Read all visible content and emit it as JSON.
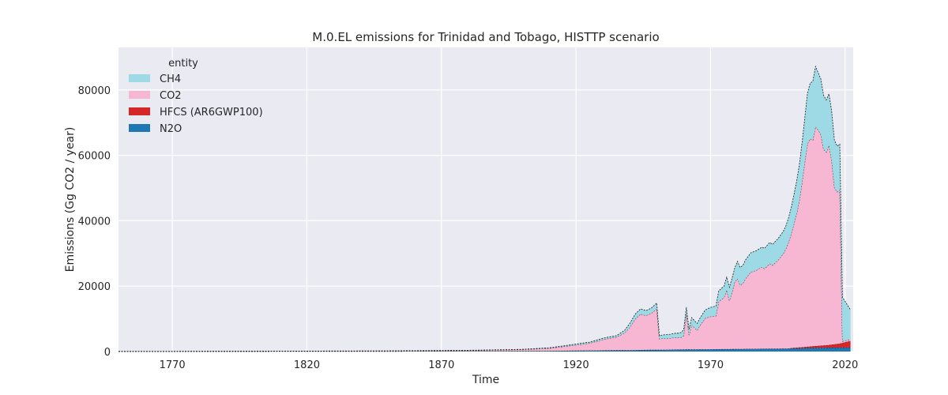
{
  "chart_data": {
    "type": "area",
    "title": "M.0.EL emissions for Trinidad and Tobago, HISTTP scenario",
    "xlabel": "Time",
    "ylabel": "Emissions (Gg CO2 / year)",
    "xlim": [
      1750,
      2023
    ],
    "ylim": [
      0,
      93000
    ],
    "xticks": [
      1770,
      1820,
      1870,
      1920,
      1970,
      2020
    ],
    "yticks": [
      0,
      20000,
      40000,
      60000,
      80000
    ],
    "grid": true,
    "stacked": true,
    "legend": {
      "title": "entity",
      "placement": "top-left"
    },
    "x": [
      1750,
      1800,
      1850,
      1880,
      1900,
      1910,
      1915,
      1920,
      1925,
      1928,
      1930,
      1932,
      1935,
      1938,
      1940,
      1942,
      1944,
      1946,
      1948,
      1950,
      1951,
      1952,
      1955,
      1957,
      1958,
      1959,
      1960,
      1961,
      1962,
      1963,
      1965,
      1966,
      1968,
      1970,
      1972,
      1973,
      1975,
      1976,
      1977,
      1978,
      1979,
      1980,
      1981,
      1982,
      1983,
      1985,
      1987,
      1989,
      1990,
      1992,
      1993,
      1995,
      1997,
      1998,
      1999,
      2000,
      2001,
      2002,
      2003,
      2004,
      2005,
      2006,
      2007,
      2008,
      2009,
      2010,
      2011,
      2012,
      2013,
      2014,
      2015,
      2016,
      2017,
      2018,
      2019,
      2020,
      2021,
      2022
    ],
    "series": [
      {
        "name": "N2O",
        "color": "#1f77b4",
        "values": [
          30,
          50,
          80,
          120,
          180,
          220,
          250,
          300,
          330,
          350,
          370,
          380,
          400,
          420,
          440,
          460,
          480,
          500,
          520,
          540,
          550,
          560,
          580,
          600,
          610,
          620,
          640,
          650,
          660,
          670,
          680,
          690,
          700,
          710,
          720,
          730,
          740,
          750,
          760,
          770,
          780,
          790,
          800,
          800,
          810,
          820,
          830,
          840,
          850,
          860,
          870,
          880,
          900,
          920,
          940,
          960,
          980,
          1000,
          1020,
          1040,
          1060,
          1080,
          1100,
          1120,
          1140,
          1150,
          1160,
          1170,
          1180,
          1190,
          1200,
          1200,
          1210,
          1220,
          1230,
          1230,
          1240,
          1250
        ]
      },
      {
        "name": "HFCS (AR6GWP100)",
        "color": "#d62728",
        "values": [
          0,
          0,
          0,
          0,
          0,
          0,
          0,
          0,
          0,
          0,
          0,
          0,
          0,
          0,
          0,
          0,
          0,
          0,
          0,
          0,
          0,
          0,
          0,
          0,
          0,
          0,
          0,
          0,
          0,
          0,
          0,
          0,
          0,
          0,
          0,
          0,
          0,
          0,
          0,
          0,
          0,
          0,
          0,
          0,
          0,
          0,
          0,
          0,
          0,
          0,
          0,
          0,
          0,
          0,
          0,
          100,
          150,
          200,
          250,
          300,
          350,
          400,
          450,
          500,
          550,
          600,
          650,
          700,
          750,
          800,
          900,
          1000,
          1100,
          1200,
          1400,
          1600,
          1800,
          2000
        ]
      },
      {
        "name": "CO2",
        "color": "#f7b6d2",
        "values": [
          10,
          30,
          100,
          200,
          420,
          780,
          1250,
          1700,
          2200,
          2850,
          3300,
          3600,
          4000,
          5200,
          7000,
          9500,
          11000,
          10500,
          11200,
          12500,
          3300,
          3400,
          3500,
          3700,
          3600,
          3700,
          4200,
          11000,
          4400,
          7500,
          5800,
          7200,
          9500,
          10000,
          10200,
          14500,
          15800,
          18000,
          14800,
          17500,
          20500,
          21500,
          19500,
          20000,
          21500,
          23500,
          24000,
          25000,
          24500,
          26000,
          25500,
          27000,
          29000,
          30500,
          32500,
          35000,
          38000,
          41000,
          45000,
          50500,
          56500,
          62000,
          63500,
          63000,
          67000,
          66000,
          64500,
          60000,
          59000,
          61000,
          56500,
          48000,
          46500,
          47000,
          500,
          500,
          500,
          500
        ]
      },
      {
        "name": "CH4",
        "color": "#9edae5",
        "values": [
          10,
          20,
          40,
          60,
          80,
          150,
          200,
          300,
          350,
          400,
          420,
          440,
          450,
          800,
          1200,
          1500,
          1600,
          1500,
          1600,
          1800,
          1000,
          1100,
          1200,
          1300,
          1400,
          1500,
          1800,
          1900,
          1800,
          2200,
          2100,
          2200,
          2500,
          2800,
          3000,
          3300,
          3500,
          4000,
          4100,
          4200,
          4300,
          5300,
          5400,
          5500,
          5700,
          5900,
          6000,
          6100,
          6200,
          6500,
          6400,
          6600,
          6800,
          7000,
          7500,
          8000,
          9000,
          10000,
          11000,
          12000,
          13500,
          15500,
          17000,
          18000,
          18500,
          17500,
          17000,
          16500,
          16000,
          15800,
          15000,
          14500,
          14000,
          14000,
          13500,
          12000,
          10500,
          9000
        ]
      }
    ]
  }
}
